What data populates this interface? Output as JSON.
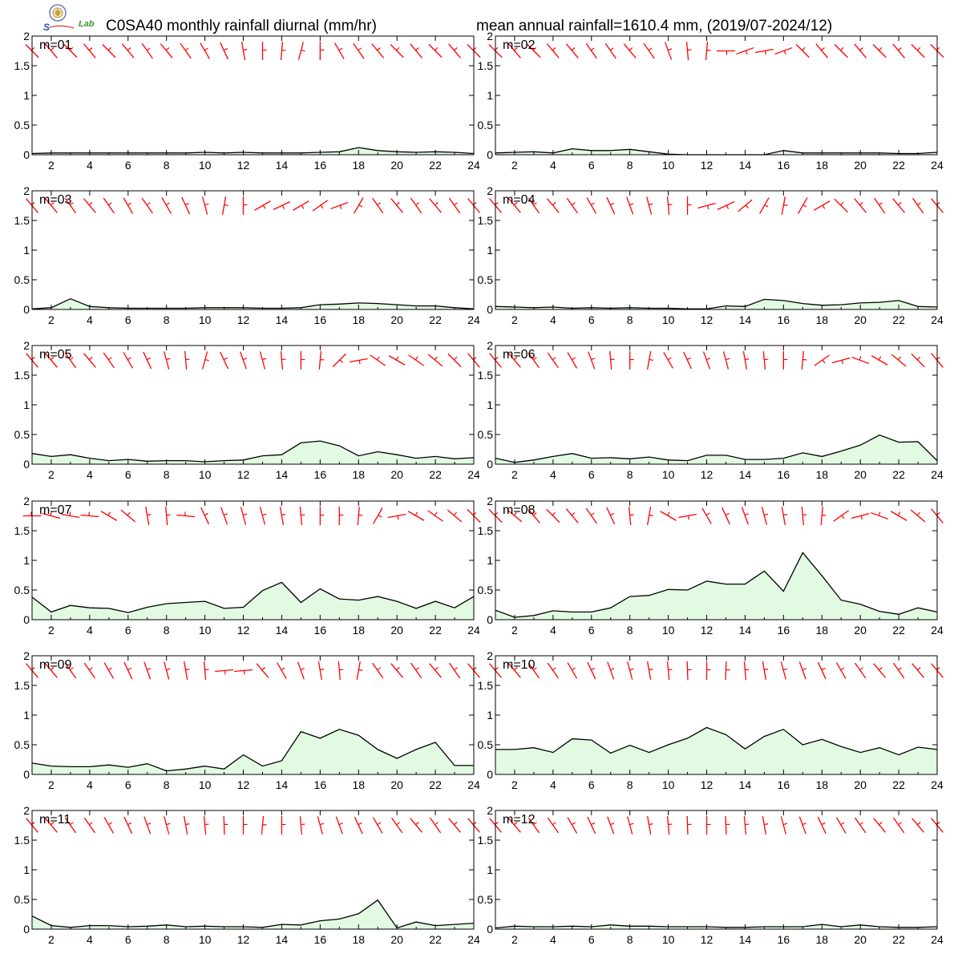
{
  "header": {
    "title_left": "C0SA40 monthly rainfall diurnal (mm/hr)",
    "title_right": "mean annual rainfall=1610.4 mm, (2019/07-2024/12)"
  },
  "logo": {
    "icon": "lab-seal-logo",
    "text": "Lab"
  },
  "colors": {
    "fill": "#e1fae1",
    "line": "#000000",
    "wind": "#ff0000"
  },
  "chart_data": {
    "type": "area",
    "x": [
      1,
      2,
      3,
      4,
      5,
      6,
      7,
      8,
      9,
      10,
      11,
      12,
      13,
      14,
      15,
      16,
      17,
      18,
      19,
      20,
      21,
      22,
      23,
      24
    ],
    "xticks": [
      "2",
      "4",
      "6",
      "8",
      "10",
      "12",
      "14",
      "16",
      "18",
      "20",
      "22",
      "24"
    ],
    "xlim": [
      1,
      24
    ],
    "ylim": [
      0,
      2
    ],
    "yticks": [
      "0",
      "0.5",
      "1",
      "1.5",
      "2"
    ],
    "grid": false,
    "panels": [
      {
        "label": "m=01",
        "values": [
          0.02,
          0.03,
          0.03,
          0.03,
          0.03,
          0.03,
          0.03,
          0.03,
          0.03,
          0.04,
          0.03,
          0.04,
          0.03,
          0.03,
          0.03,
          0.04,
          0.05,
          0.12,
          0.07,
          0.05,
          0.04,
          0.05,
          0.04,
          0.02
        ],
        "wind_dir": [
          315,
          320,
          315,
          320,
          315,
          320,
          325,
          320,
          325,
          330,
          335,
          350,
          360,
          5,
          15,
          0,
          330,
          325,
          320,
          315,
          320,
          315,
          320,
          315
        ],
        "wind_lvl": [
          1,
          1,
          1,
          1,
          1,
          1,
          1,
          1,
          1,
          1,
          1,
          1,
          1,
          1,
          1,
          1,
          1,
          1,
          1,
          1,
          1,
          1,
          1,
          1
        ]
      },
      {
        "label": "m=02",
        "values": [
          0.03,
          0.04,
          0.05,
          0.03,
          0.1,
          0.07,
          0.07,
          0.09,
          0.05,
          0.01,
          0.0,
          0.0,
          0.0,
          0.0,
          0.0,
          0.07,
          0.03,
          0.03,
          0.03,
          0.03,
          0.03,
          0.02,
          0.02,
          0.04
        ],
        "wind_dir": [
          315,
          320,
          315,
          320,
          320,
          325,
          325,
          320,
          325,
          340,
          355,
          5,
          90,
          70,
          80,
          70,
          315,
          320,
          315,
          320,
          315,
          320,
          315,
          315
        ],
        "wind_lvl": [
          1,
          1,
          1,
          1,
          1,
          1,
          1,
          1,
          1,
          1,
          1,
          1,
          1,
          1,
          1,
          1,
          1,
          1,
          1,
          1,
          1,
          1,
          1,
          1
        ]
      },
      {
        "label": "m=03",
        "values": [
          0.01,
          0.03,
          0.18,
          0.05,
          0.03,
          0.02,
          0.02,
          0.02,
          0.02,
          0.03,
          0.03,
          0.03,
          0.02,
          0.02,
          0.03,
          0.08,
          0.09,
          0.11,
          0.1,
          0.08,
          0.06,
          0.06,
          0.03,
          0.01
        ],
        "wind_dir": [
          320,
          320,
          325,
          320,
          325,
          330,
          325,
          330,
          335,
          345,
          10,
          0,
          60,
          65,
          60,
          55,
          70,
          30,
          325,
          320,
          325,
          320,
          325,
          320
        ],
        "wind_lvl": [
          1,
          1,
          1,
          1,
          1,
          1,
          1,
          1,
          1,
          1,
          1,
          1,
          1,
          1,
          1,
          1,
          1,
          1,
          1,
          1,
          1,
          1,
          1,
          1
        ]
      },
      {
        "label": "m=04",
        "values": [
          0.05,
          0.04,
          0.03,
          0.04,
          0.02,
          0.03,
          0.02,
          0.03,
          0.02,
          0.02,
          0.01,
          0.01,
          0.06,
          0.05,
          0.17,
          0.15,
          0.1,
          0.07,
          0.08,
          0.11,
          0.12,
          0.15,
          0.05,
          0.04
        ],
        "wind_dir": [
          320,
          320,
          325,
          320,
          325,
          330,
          335,
          340,
          345,
          355,
          0,
          75,
          65,
          50,
          30,
          10,
          30,
          60,
          315,
          320,
          325,
          320,
          325,
          320
        ],
        "wind_lvl": [
          1,
          1,
          1,
          1,
          1,
          1,
          1,
          1,
          1,
          1,
          1,
          1,
          1,
          1,
          1,
          1,
          1,
          1,
          1,
          1,
          1,
          1,
          1,
          1
        ]
      },
      {
        "label": "m=05",
        "values": [
          0.18,
          0.13,
          0.16,
          0.1,
          0.06,
          0.08,
          0.05,
          0.06,
          0.06,
          0.04,
          0.06,
          0.07,
          0.14,
          0.16,
          0.36,
          0.39,
          0.31,
          0.14,
          0.21,
          0.16,
          0.1,
          0.13,
          0.09,
          0.11
        ],
        "wind_dir": [
          320,
          320,
          325,
          320,
          325,
          330,
          335,
          345,
          355,
          15,
          335,
          340,
          345,
          355,
          0,
          5,
          45,
          80,
          305,
          300,
          305,
          310,
          315,
          320
        ],
        "wind_lvl": [
          1,
          1,
          1,
          1,
          1,
          1,
          1,
          1,
          1,
          1,
          1,
          1,
          1,
          1,
          1,
          1,
          1,
          1,
          1,
          1,
          1,
          1,
          1,
          1
        ]
      },
      {
        "label": "m=06",
        "values": [
          0.1,
          0.03,
          0.07,
          0.13,
          0.18,
          0.1,
          0.11,
          0.09,
          0.12,
          0.07,
          0.06,
          0.15,
          0.15,
          0.08,
          0.08,
          0.1,
          0.19,
          0.13,
          0.22,
          0.32,
          0.49,
          0.37,
          0.38,
          0.06
        ],
        "wind_dir": [
          320,
          320,
          325,
          325,
          330,
          340,
          355,
          0,
          10,
          330,
          335,
          340,
          345,
          350,
          355,
          0,
          5,
          55,
          75,
          290,
          300,
          310,
          315,
          320
        ],
        "wind_lvl": [
          1,
          1,
          1,
          1,
          1,
          1,
          1,
          1,
          1,
          1,
          1,
          1,
          1,
          1,
          1,
          1,
          1,
          1,
          1,
          1,
          1,
          1,
          1,
          1
        ]
      },
      {
        "label": "m=07",
        "values": [
          0.38,
          0.13,
          0.24,
          0.2,
          0.19,
          0.12,
          0.21,
          0.27,
          0.29,
          0.31,
          0.19,
          0.21,
          0.49,
          0.63,
          0.29,
          0.52,
          0.35,
          0.33,
          0.39,
          0.31,
          0.19,
          0.31,
          0.2,
          0.39
        ],
        "wind_dir": [
          270,
          285,
          280,
          275,
          300,
          310,
          350,
          355,
          275,
          335,
          340,
          345,
          345,
          350,
          355,
          0,
          0,
          5,
          30,
          80,
          300,
          305,
          310,
          315
        ],
        "wind_lvl": [
          1,
          1,
          1,
          1,
          1,
          1,
          1,
          1,
          1,
          1,
          1,
          1,
          1,
          1,
          1,
          1,
          1,
          1,
          1,
          1,
          1,
          1,
          1,
          1
        ]
      },
      {
        "label": "m=08",
        "values": [
          0.16,
          0.04,
          0.07,
          0.15,
          0.13,
          0.13,
          0.2,
          0.39,
          0.41,
          0.51,
          0.5,
          0.65,
          0.6,
          0.6,
          0.82,
          0.48,
          1.13,
          0.74,
          0.33,
          0.26,
          0.14,
          0.09,
          0.2,
          0.13
        ],
        "wind_dir": [
          315,
          310,
          320,
          315,
          320,
          325,
          335,
          355,
          10,
          300,
          80,
          330,
          335,
          340,
          345,
          350,
          355,
          5,
          55,
          75,
          290,
          300,
          310,
          320
        ],
        "wind_lvl": [
          1,
          1,
          1,
          1,
          1,
          1,
          1,
          1,
          1,
          1,
          1,
          1,
          1,
          1,
          1,
          1,
          1,
          1,
          1,
          1,
          1,
          1,
          1,
          1
        ]
      },
      {
        "label": "m=09",
        "values": [
          0.19,
          0.14,
          0.13,
          0.13,
          0.16,
          0.12,
          0.18,
          0.06,
          0.09,
          0.14,
          0.09,
          0.33,
          0.14,
          0.23,
          0.72,
          0.61,
          0.76,
          0.66,
          0.42,
          0.27,
          0.42,
          0.54,
          0.15,
          0.15
        ],
        "wind_dir": [
          320,
          320,
          325,
          325,
          330,
          335,
          340,
          345,
          350,
          355,
          85,
          85,
          320,
          330,
          340,
          350,
          355,
          10,
          325,
          320,
          325,
          320,
          325,
          320
        ],
        "wind_lvl": [
          1,
          1,
          1,
          1,
          1,
          1,
          1,
          1,
          1,
          1,
          1,
          1,
          1,
          1,
          1,
          1,
          1,
          1,
          1,
          1,
          1,
          1,
          1,
          1
        ]
      },
      {
        "label": "m=10",
        "values": [
          0.42,
          0.42,
          0.45,
          0.37,
          0.6,
          0.58,
          0.36,
          0.49,
          0.37,
          0.5,
          0.61,
          0.79,
          0.67,
          0.43,
          0.64,
          0.76,
          0.5,
          0.59,
          0.47,
          0.37,
          0.45,
          0.33,
          0.46,
          0.42
        ],
        "wind_dir": [
          320,
          320,
          325,
          325,
          330,
          335,
          340,
          345,
          350,
          355,
          358,
          0,
          2,
          355,
          350,
          345,
          340,
          335,
          330,
          325,
          320,
          325,
          320,
          320
        ],
        "wind_lvl": [
          1,
          1,
          1,
          1,
          1,
          1,
          1,
          1,
          1,
          1,
          1,
          1,
          1,
          1,
          1,
          1,
          1,
          1,
          1,
          1,
          1,
          1,
          1,
          1
        ]
      },
      {
        "label": "m=11",
        "values": [
          0.22,
          0.06,
          0.03,
          0.06,
          0.06,
          0.04,
          0.05,
          0.07,
          0.04,
          0.05,
          0.04,
          0.04,
          0.03,
          0.08,
          0.07,
          0.14,
          0.17,
          0.26,
          0.49,
          0.02,
          0.12,
          0.06,
          0.08,
          0.1
        ],
        "wind_dir": [
          320,
          320,
          325,
          325,
          330,
          335,
          340,
          345,
          350,
          355,
          358,
          0,
          5,
          0,
          355,
          345,
          340,
          335,
          330,
          325,
          320,
          325,
          320,
          320
        ],
        "wind_lvl": [
          1,
          1,
          1,
          1,
          1,
          1,
          1,
          1,
          1,
          1,
          1,
          1,
          1,
          1,
          1,
          1,
          1,
          1,
          1,
          1,
          1,
          1,
          1,
          1
        ]
      },
      {
        "label": "m=12",
        "values": [
          0.02,
          0.05,
          0.04,
          0.04,
          0.05,
          0.04,
          0.07,
          0.05,
          0.05,
          0.04,
          0.04,
          0.04,
          0.03,
          0.03,
          0.04,
          0.04,
          0.04,
          0.08,
          0.04,
          0.07,
          0.04,
          0.03,
          0.03,
          0.04
        ],
        "wind_dir": [
          320,
          320,
          325,
          325,
          330,
          335,
          340,
          345,
          350,
          355,
          358,
          0,
          358,
          355,
          350,
          345,
          340,
          335,
          330,
          325,
          320,
          325,
          320,
          320
        ],
        "wind_lvl": [
          1,
          1,
          1,
          1,
          1,
          1,
          1,
          1,
          1,
          1,
          1,
          1,
          1,
          1,
          1,
          1,
          1,
          1,
          1,
          1,
          1,
          1,
          1,
          1
        ]
      }
    ]
  }
}
